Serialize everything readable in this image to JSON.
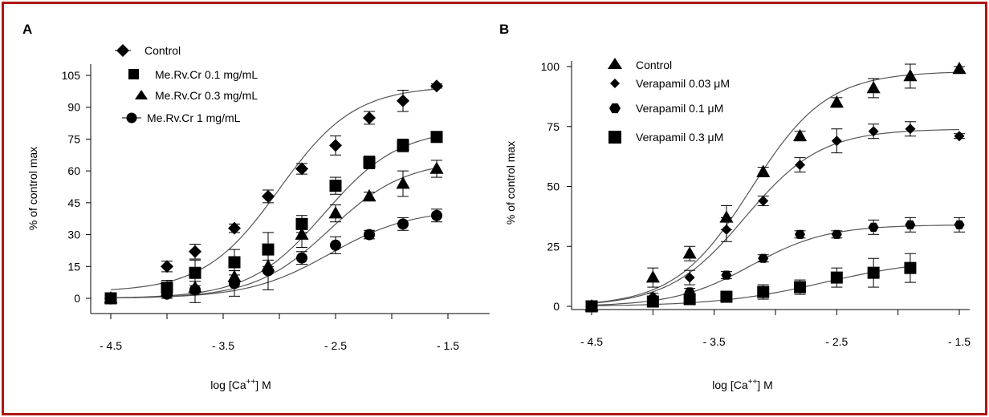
{
  "colors": {
    "border": "#b01616",
    "ink": "#000000",
    "fit_line": "#555555"
  },
  "chart_data": [
    {
      "panel_label": "A",
      "type": "scatter",
      "ylabel": "% of control max",
      "xlabel_parts": [
        "log [Ca",
        "++",
        "] M"
      ],
      "xlim": [
        -4.6,
        -1.0
      ],
      "ylim": [
        -3,
        108
      ],
      "x_ticks": [
        -4.5,
        -3.5,
        -2.5,
        -1.5
      ],
      "x_tick_labels": [
        "- 4.5",
        "- 3.5",
        "- 2.5",
        "- 1.5"
      ],
      "y_ticks": [
        0,
        15,
        30,
        45,
        60,
        75,
        90,
        105
      ],
      "y_tick_labels": [
        "0",
        "15",
        "30",
        "45",
        "60",
        "75",
        "90",
        "105"
      ],
      "legend_position": "top-left",
      "series": [
        {
          "name": "Control",
          "marker": "diamond",
          "x": [
            -4.5,
            -4.0,
            -3.75,
            -3.4,
            -3.1,
            -2.8,
            -2.5,
            -2.2,
            -1.9,
            -1.6
          ],
          "y": [
            0,
            15,
            22,
            33,
            48,
            61,
            72,
            85,
            93,
            100
          ],
          "err": [
            1.5,
            2.5,
            3.5,
            2,
            3,
            2.5,
            4.5,
            3,
            5,
            1
          ],
          "fit": {
            "bottom": 3,
            "top": 100,
            "ec50": -3.0,
            "hill": 1.3
          }
        },
        {
          "name": "Me.Rv.Cr 0.1 mg/mL",
          "marker": "square",
          "x": [
            -4.5,
            -4.0,
            -3.75,
            -3.4,
            -3.1,
            -2.8,
            -2.5,
            -2.2,
            -1.9,
            -1.6
          ],
          "y": [
            0,
            5,
            12,
            17,
            23,
            35,
            53,
            64,
            72,
            76
          ],
          "err": [
            1.5,
            3.5,
            6,
            6,
            8,
            4,
            4,
            3,
            3,
            2
          ],
          "fit": {
            "bottom": 0,
            "top": 80,
            "ec50": -2.6,
            "hill": 1.3
          }
        },
        {
          "name": "Me.Rv.Cr 0.3 mg/mL",
          "marker": "triangle",
          "x": [
            -4.5,
            -4.0,
            -3.75,
            -3.4,
            -3.1,
            -2.8,
            -2.5,
            -2.2,
            -1.9,
            -1.6
          ],
          "y": [
            0,
            3,
            5,
            10,
            15,
            30,
            40,
            48,
            54,
            61
          ],
          "err": [
            1,
            2,
            3,
            3,
            3,
            6,
            4,
            2,
            6,
            4
          ],
          "fit": {
            "bottom": 0,
            "top": 65,
            "ec50": -2.55,
            "hill": 1.3
          }
        },
        {
          "name": "Me.Rv.Cr 1 mg/mL",
          "marker": "circle",
          "x": [
            -4.5,
            -4.0,
            -3.75,
            -3.4,
            -3.1,
            -2.8,
            -2.5,
            -2.2,
            -1.9,
            -1.6
          ],
          "y": [
            0,
            2,
            4,
            7,
            13,
            19,
            25,
            30,
            35,
            39
          ],
          "err": [
            1,
            2,
            6,
            6,
            9,
            3,
            4,
            2,
            3,
            3
          ],
          "fit": {
            "bottom": 0,
            "top": 42,
            "ec50": -2.55,
            "hill": 1.2
          }
        }
      ]
    },
    {
      "panel_label": "B",
      "type": "scatter",
      "ylabel": "% of control max",
      "xlabel_parts": [
        "log [Ca",
        "++",
        "] M"
      ],
      "xlim": [
        -4.5,
        -1.5
      ],
      "ylim": [
        -1,
        102
      ],
      "x_ticks": [
        -4.5,
        -3.5,
        -2.5,
        -1.5
      ],
      "x_tick_labels": [
        "- 4.5",
        "- 3.5",
        "- 2.5",
        "- 1.5"
      ],
      "y_ticks": [
        0,
        25,
        50,
        75,
        100
      ],
      "y_tick_labels": [
        "0",
        "25",
        "50",
        "75",
        "100"
      ],
      "legend_position": "top-left",
      "series": [
        {
          "name": "Control",
          "marker": "triangle",
          "x": [
            -4.5,
            -4.0,
            -3.7,
            -3.4,
            -3.1,
            -2.8,
            -2.5,
            -2.2,
            -1.9,
            -1.5
          ],
          "y": [
            0,
            12,
            22,
            37,
            56,
            71,
            85,
            91,
            96,
            99
          ],
          "err": [
            1,
            4,
            3,
            5,
            2,
            2,
            2,
            4,
            5,
            1
          ],
          "fit": {
            "bottom": 0,
            "top": 98,
            "ec50": -3.2,
            "hill": 1.4
          }
        },
        {
          "name": "Verapamil 0.03 μM",
          "marker": "diamond",
          "x": [
            -4.5,
            -4.0,
            -3.7,
            -3.4,
            -3.1,
            -2.8,
            -2.5,
            -2.2,
            -1.9,
            -1.5
          ],
          "y": [
            0,
            4,
            12,
            32,
            44,
            59,
            69,
            73,
            74,
            71
          ],
          "err": [
            1,
            1.5,
            3,
            5,
            2,
            3,
            5,
            3,
            3,
            1
          ],
          "fit": {
            "bottom": 0,
            "top": 74,
            "ec50": -3.25,
            "hill": 1.4
          }
        },
        {
          "name": "Verapamil 0.1 μM",
          "marker": "hexagon",
          "x": [
            -4.5,
            -4.0,
            -3.7,
            -3.4,
            -3.1,
            -2.8,
            -2.5,
            -2.2,
            -1.9,
            -1.5
          ],
          "y": [
            0,
            2,
            6,
            13,
            20,
            30,
            30,
            33,
            34,
            34
          ],
          "err": [
            1,
            1.5,
            1.5,
            1.5,
            1.5,
            1.5,
            1.5,
            3,
            3,
            3
          ],
          "fit": {
            "bottom": 0,
            "top": 34,
            "ec50": -3.2,
            "hill": 1.4
          }
        },
        {
          "name": "Verapamil 0.3 μM",
          "marker": "square",
          "x": [
            -4.5,
            -4.0,
            -3.7,
            -3.4,
            -3.1,
            -2.8,
            -2.5,
            -2.2,
            -1.9
          ],
          "y": [
            0,
            2,
            3,
            4,
            6,
            8,
            12,
            14,
            16
          ],
          "err": [
            1,
            1.5,
            1.5,
            1.5,
            3,
            3,
            4,
            6,
            6
          ],
          "fit": {
            "bottom": 0,
            "top": 20,
            "ec50": -2.6,
            "hill": 1.0
          }
        }
      ]
    }
  ]
}
